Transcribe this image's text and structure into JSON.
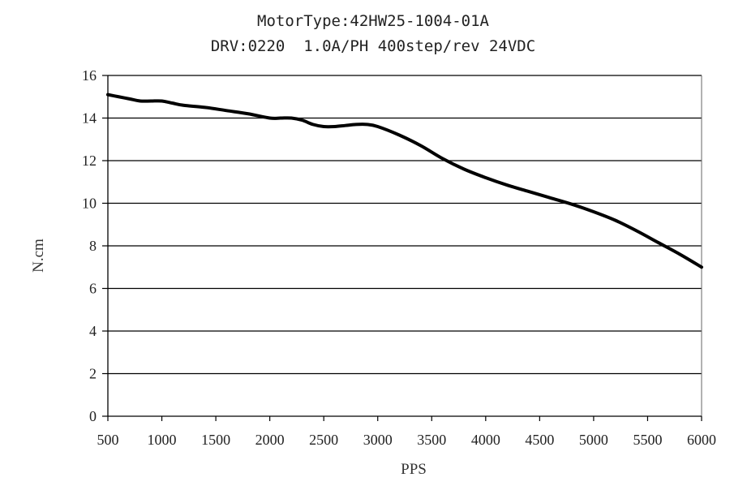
{
  "chart_data": {
    "type": "line",
    "title": "MotorType:42HW25-1004-01A",
    "subtitle": "DRV:0220  1.0A/PH 400step/rev 24VDC",
    "xlabel": "PPS",
    "ylabel": "N.cm",
    "xlim": [
      500,
      6000
    ],
    "ylim": [
      0,
      16
    ],
    "x_ticks": [
      500,
      1000,
      1500,
      2000,
      2500,
      3000,
      3500,
      4000,
      4500,
      5000,
      5500,
      6000
    ],
    "y_ticks": [
      0,
      2,
      4,
      6,
      8,
      10,
      12,
      14,
      16
    ],
    "grid": "horizontal",
    "series": [
      {
        "color": "#000000",
        "x": [
          500,
          600,
          700,
          800,
          900,
          1000,
          1100,
          1200,
          1400,
          1600,
          1800,
          2000,
          2100,
          2200,
          2300,
          2400,
          2500,
          2600,
          2700,
          2800,
          2900,
          3000,
          3200,
          3400,
          3600,
          3800,
          4000,
          4200,
          4400,
          4600,
          4800,
          5000,
          5200,
          5400,
          5600,
          5800,
          6000
        ],
        "y": [
          15.1,
          15.0,
          14.9,
          14.8,
          14.8,
          14.8,
          14.7,
          14.6,
          14.5,
          14.35,
          14.2,
          14.0,
          14.0,
          14.0,
          13.9,
          13.7,
          13.6,
          13.6,
          13.65,
          13.7,
          13.7,
          13.6,
          13.2,
          12.7,
          12.1,
          11.6,
          11.2,
          10.85,
          10.55,
          10.25,
          9.95,
          9.6,
          9.2,
          8.7,
          8.15,
          7.6,
          7.0
        ]
      }
    ]
  }
}
